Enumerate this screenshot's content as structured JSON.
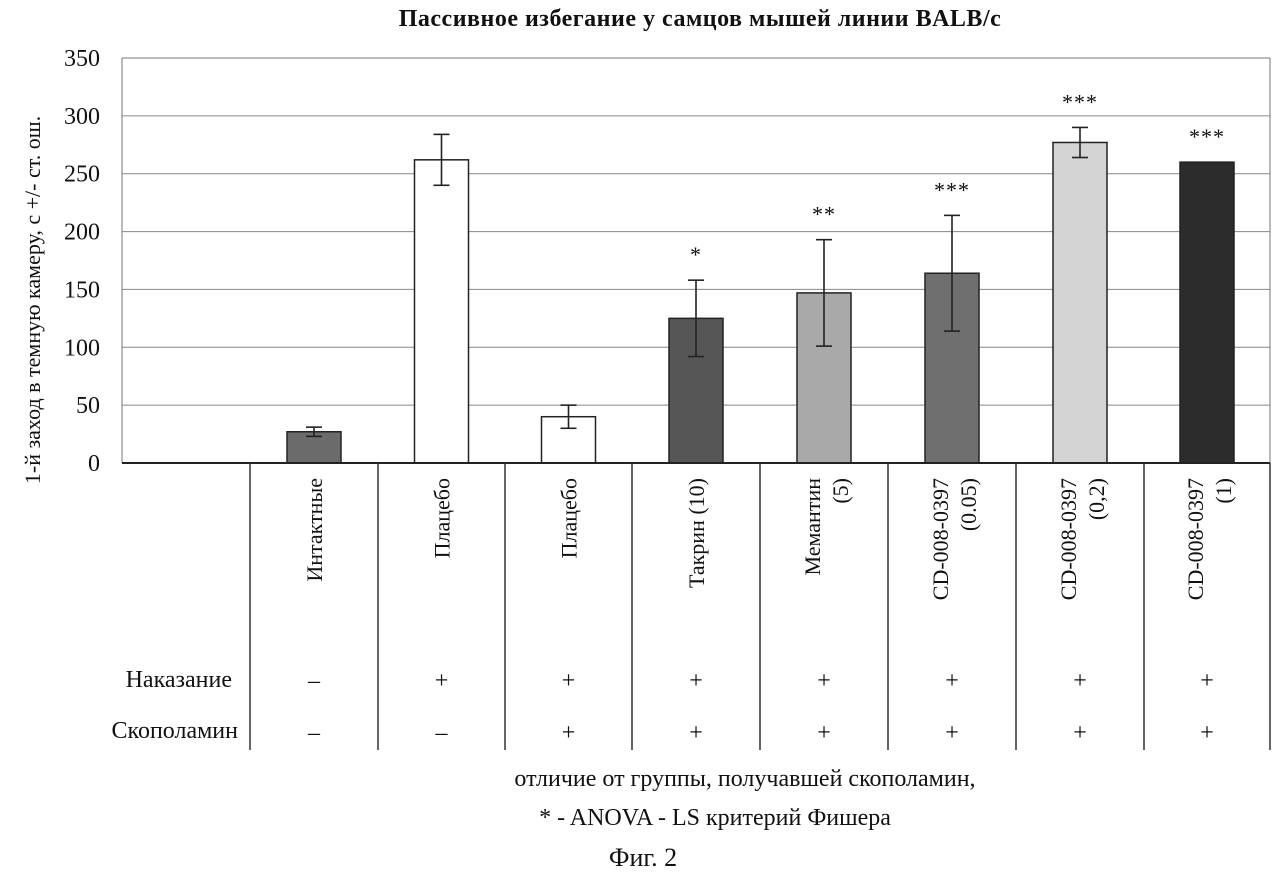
{
  "chart_data": {
    "type": "bar",
    "title": "Пассивное избегание у самцов мышей линии BALB/c",
    "ylabel": "1-й заход в темную камеру, с +/- ст. ош.",
    "ylim": [
      0,
      350
    ],
    "yticks": [
      "0",
      "50",
      "100",
      "150",
      "200",
      "250",
      "300",
      "350"
    ],
    "grid": true,
    "categories": [
      {
        "line1": "Интактные",
        "line2": ""
      },
      {
        "line1": "Плацебо",
        "line2": ""
      },
      {
        "line1": "Плацебо",
        "line2": ""
      },
      {
        "line1": "Такрин (10)",
        "line2": ""
      },
      {
        "line1": "Мемантин",
        "line2": "(5)"
      },
      {
        "line1": "CD-008-0397",
        "line2": "(0.05)"
      },
      {
        "line1": "CD-008-0397",
        "line2": "(0,2)"
      },
      {
        "line1": "CD-008-0397",
        "line2": "(1)"
      }
    ],
    "values": [
      27,
      262,
      40,
      125,
      147,
      164,
      277,
      260
    ],
    "errors": [
      4,
      22,
      10,
      33,
      46,
      50,
      13,
      0
    ],
    "bar_colors": [
      "#6b6b6b",
      "#ffffff",
      "#ffffff",
      "#565656",
      "#a9a9a9",
      "#6f6f6f",
      "#d4d4d4",
      "#2c2c2c"
    ],
    "significance": [
      "",
      "",
      "",
      "*",
      "**",
      "***",
      "***",
      "***"
    ],
    "rows": [
      {
        "label": "Наказание",
        "signs": [
          "–",
          "+",
          "+",
          "+",
          "+",
          "+",
          "+",
          "+"
        ]
      },
      {
        "label": "Скополамин",
        "signs": [
          "–",
          "–",
          "+",
          "+",
          "+",
          "+",
          "+",
          "+"
        ]
      }
    ]
  },
  "footnote": {
    "line1": "отличие от группы, получавшей скополамин,",
    "line2": "* - ANOVA - LS критерий Фишера"
  },
  "figure_label": "Фиг. 2"
}
